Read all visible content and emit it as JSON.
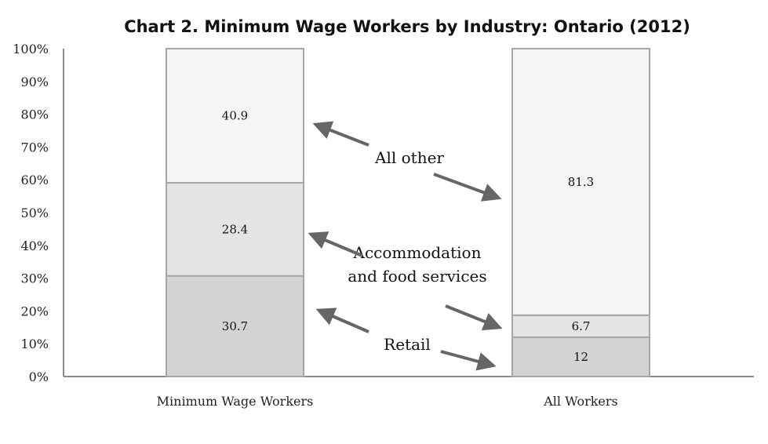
{
  "chart_data": {
    "type": "bar",
    "stacked": true,
    "title": "Chart 2. Minimum Wage Workers by Industry: Ontario (2012)",
    "categories": [
      "Minimum Wage Workers",
      "All Workers"
    ],
    "series": [
      {
        "name": "Retail",
        "values": [
          30.7,
          12
        ],
        "color": "#d3d3d5"
      },
      {
        "name": "Accommodation and food services",
        "values": [
          28.4,
          6.7
        ],
        "color": "#e4e4e4"
      },
      {
        "name": "All other",
        "values": [
          40.9,
          81.3
        ],
        "color": "#f5f5f5"
      }
    ],
    "yticks": [
      "0%",
      "10%",
      "20%",
      "30%",
      "40%",
      "50%",
      "60%",
      "70%",
      "80%",
      "90%",
      "100%"
    ],
    "ylim": [
      0,
      100
    ],
    "grid": false,
    "annotations": [
      {
        "lines": [
          "All other"
        ],
        "series": "All other"
      },
      {
        "lines": [
          "Accommodation",
          "and food services"
        ],
        "series": "Accommodation and food services"
      },
      {
        "lines": [
          "Retail"
        ],
        "series": "Retail"
      }
    ]
  }
}
